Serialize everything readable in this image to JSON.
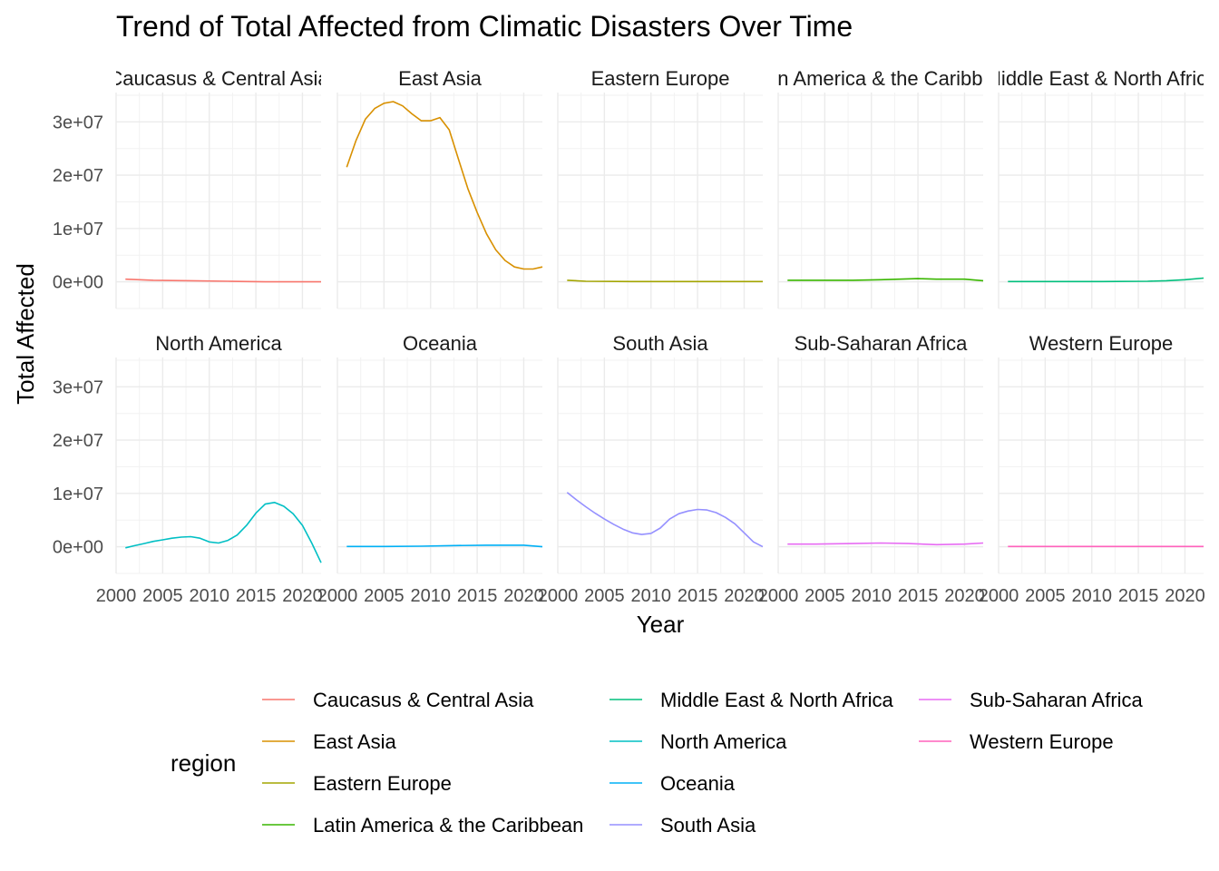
{
  "chart_data": {
    "type": "line",
    "title": "Trend of Total Affected from Climatic Disasters Over Time",
    "xlabel": "Year",
    "ylabel": "Total Affected",
    "xlim": [
      2000,
      2022
    ],
    "ylim": [
      -5000000,
      35500000
    ],
    "x_ticks": [
      2000,
      2005,
      2010,
      2015,
      2020
    ],
    "x_tick_labels": [
      "2000",
      "2005",
      "2010",
      "2015",
      "2020"
    ],
    "y_ticks": [
      0,
      10000000,
      20000000,
      30000000
    ],
    "y_tick_labels": [
      "0e+00",
      "1e+07",
      "2e+07",
      "3e+07"
    ],
    "grid": true,
    "facet_layout": {
      "rows": 2,
      "cols": 5
    },
    "legend": {
      "title": "region",
      "position": "bottom"
    },
    "series": [
      {
        "name": "Caucasus & Central Asia",
        "strip_label": "Caucasus & Central Asia",
        "color": "#F8766D",
        "points": [
          [
            2001,
            500000
          ],
          [
            2004,
            300000
          ],
          [
            2008,
            200000
          ],
          [
            2012,
            100000
          ],
          [
            2016,
            0
          ],
          [
            2020,
            0
          ],
          [
            2022,
            0
          ]
        ]
      },
      {
        "name": "East Asia",
        "strip_label": "East Asia",
        "color": "#D89000",
        "points": [
          [
            2001,
            21500000
          ],
          [
            2002,
            26500000
          ],
          [
            2003,
            30500000
          ],
          [
            2004,
            32500000
          ],
          [
            2005,
            33500000
          ],
          [
            2006,
            33800000
          ],
          [
            2007,
            33000000
          ],
          [
            2008,
            31500000
          ],
          [
            2009,
            30200000
          ],
          [
            2010,
            30200000
          ],
          [
            2011,
            30800000
          ],
          [
            2012,
            28500000
          ],
          [
            2013,
            23000000
          ],
          [
            2014,
            17500000
          ],
          [
            2015,
            13000000
          ],
          [
            2016,
            9000000
          ],
          [
            2017,
            6000000
          ],
          [
            2018,
            4000000
          ],
          [
            2019,
            2800000
          ],
          [
            2020,
            2400000
          ],
          [
            2021,
            2400000
          ],
          [
            2022,
            2800000
          ]
        ]
      },
      {
        "name": "Eastern Europe",
        "strip_label": "Eastern Europe",
        "color": "#A3A500",
        "points": [
          [
            2001,
            300000
          ],
          [
            2003,
            100000
          ],
          [
            2008,
            50000
          ],
          [
            2012,
            50000
          ],
          [
            2016,
            50000
          ],
          [
            2020,
            50000
          ],
          [
            2022,
            50000
          ]
        ]
      },
      {
        "name": "Latin America & the Caribbean",
        "strip_label": "Latin America & the Caribbean",
        "color": "#39B600",
        "points": [
          [
            2001,
            300000
          ],
          [
            2004,
            300000
          ],
          [
            2008,
            300000
          ],
          [
            2011,
            400000
          ],
          [
            2013,
            500000
          ],
          [
            2015,
            600000
          ],
          [
            2017,
            500000
          ],
          [
            2020,
            500000
          ],
          [
            2022,
            200000
          ]
        ]
      },
      {
        "name": "Middle East & North Africa",
        "strip_label": "Middle East & North Africa",
        "color": "#00BF7D",
        "points": [
          [
            2001,
            50000
          ],
          [
            2006,
            50000
          ],
          [
            2011,
            50000
          ],
          [
            2016,
            100000
          ],
          [
            2018,
            200000
          ],
          [
            2020,
            400000
          ],
          [
            2022,
            700000
          ]
        ]
      },
      {
        "name": "North America",
        "strip_label": "North America",
        "color": "#00BFC4",
        "points": [
          [
            2001,
            -200000
          ],
          [
            2002,
            200000
          ],
          [
            2003,
            600000
          ],
          [
            2004,
            1000000
          ],
          [
            2005,
            1300000
          ],
          [
            2006,
            1600000
          ],
          [
            2007,
            1800000
          ],
          [
            2008,
            1900000
          ],
          [
            2009,
            1600000
          ],
          [
            2010,
            900000
          ],
          [
            2011,
            700000
          ],
          [
            2012,
            1200000
          ],
          [
            2013,
            2200000
          ],
          [
            2014,
            4000000
          ],
          [
            2015,
            6300000
          ],
          [
            2016,
            8000000
          ],
          [
            2017,
            8300000
          ],
          [
            2018,
            7600000
          ],
          [
            2019,
            6200000
          ],
          [
            2020,
            4000000
          ],
          [
            2021,
            700000
          ],
          [
            2022,
            -3000000
          ]
        ]
      },
      {
        "name": "Oceania",
        "strip_label": "Oceania",
        "color": "#00B0F6",
        "points": [
          [
            2001,
            50000
          ],
          [
            2005,
            50000
          ],
          [
            2009,
            100000
          ],
          [
            2012,
            200000
          ],
          [
            2016,
            300000
          ],
          [
            2020,
            300000
          ],
          [
            2022,
            0
          ]
        ]
      },
      {
        "name": "South Asia",
        "strip_label": "South Asia",
        "color": "#9590FF",
        "points": [
          [
            2001,
            10200000
          ],
          [
            2002,
            8800000
          ],
          [
            2003,
            7500000
          ],
          [
            2004,
            6300000
          ],
          [
            2005,
            5200000
          ],
          [
            2006,
            4200000
          ],
          [
            2007,
            3300000
          ],
          [
            2008,
            2600000
          ],
          [
            2009,
            2300000
          ],
          [
            2010,
            2500000
          ],
          [
            2011,
            3500000
          ],
          [
            2012,
            5200000
          ],
          [
            2013,
            6200000
          ],
          [
            2014,
            6700000
          ],
          [
            2015,
            7000000
          ],
          [
            2016,
            6900000
          ],
          [
            2017,
            6400000
          ],
          [
            2018,
            5500000
          ],
          [
            2019,
            4300000
          ],
          [
            2020,
            2600000
          ],
          [
            2021,
            900000
          ],
          [
            2022,
            0
          ]
        ]
      },
      {
        "name": "Sub-Saharan Africa",
        "strip_label": "Sub-Saharan Africa",
        "color": "#E76BF3",
        "points": [
          [
            2001,
            500000
          ],
          [
            2004,
            500000
          ],
          [
            2008,
            600000
          ],
          [
            2011,
            700000
          ],
          [
            2014,
            600000
          ],
          [
            2017,
            400000
          ],
          [
            2020,
            500000
          ],
          [
            2022,
            700000
          ]
        ]
      },
      {
        "name": "Western Europe",
        "strip_label": "Western Europe",
        "color": "#FF62BC",
        "points": [
          [
            2001,
            50000
          ],
          [
            2006,
            50000
          ],
          [
            2011,
            50000
          ],
          [
            2016,
            50000
          ],
          [
            2022,
            50000
          ]
        ]
      }
    ]
  }
}
